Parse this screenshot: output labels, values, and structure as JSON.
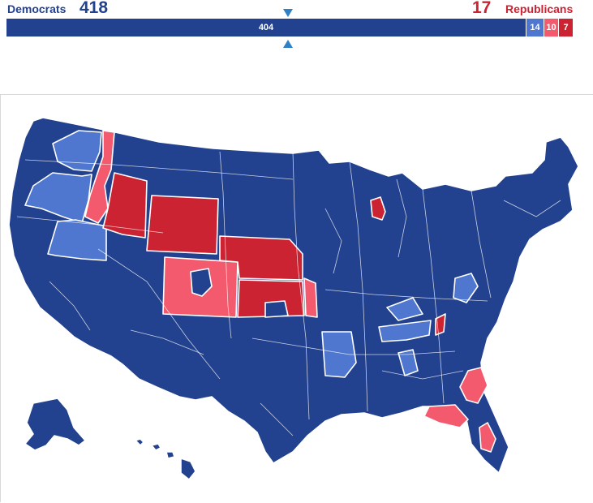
{
  "header": {
    "dem_label": "Democrats",
    "dem_count": "418",
    "rep_count": "17",
    "rep_label": "Republicans"
  },
  "bar": {
    "segments": [
      {
        "label": "404",
        "value": 404,
        "color": "#22418f"
      },
      {
        "label": "14",
        "value": 14,
        "color": "#4f77cf"
      },
      {
        "label": "10",
        "value": 10,
        "color": "#f35a6d"
      },
      {
        "label": "7",
        "value": 7,
        "color": "#cc2333"
      }
    ],
    "marker_color": "#2f80c4"
  },
  "map": {
    "colors": {
      "safe_dem": "#22418f",
      "lean_dem": "#4f77cf",
      "lean_rep": "#f35a6d",
      "safe_rep": "#cc2333"
    }
  }
}
